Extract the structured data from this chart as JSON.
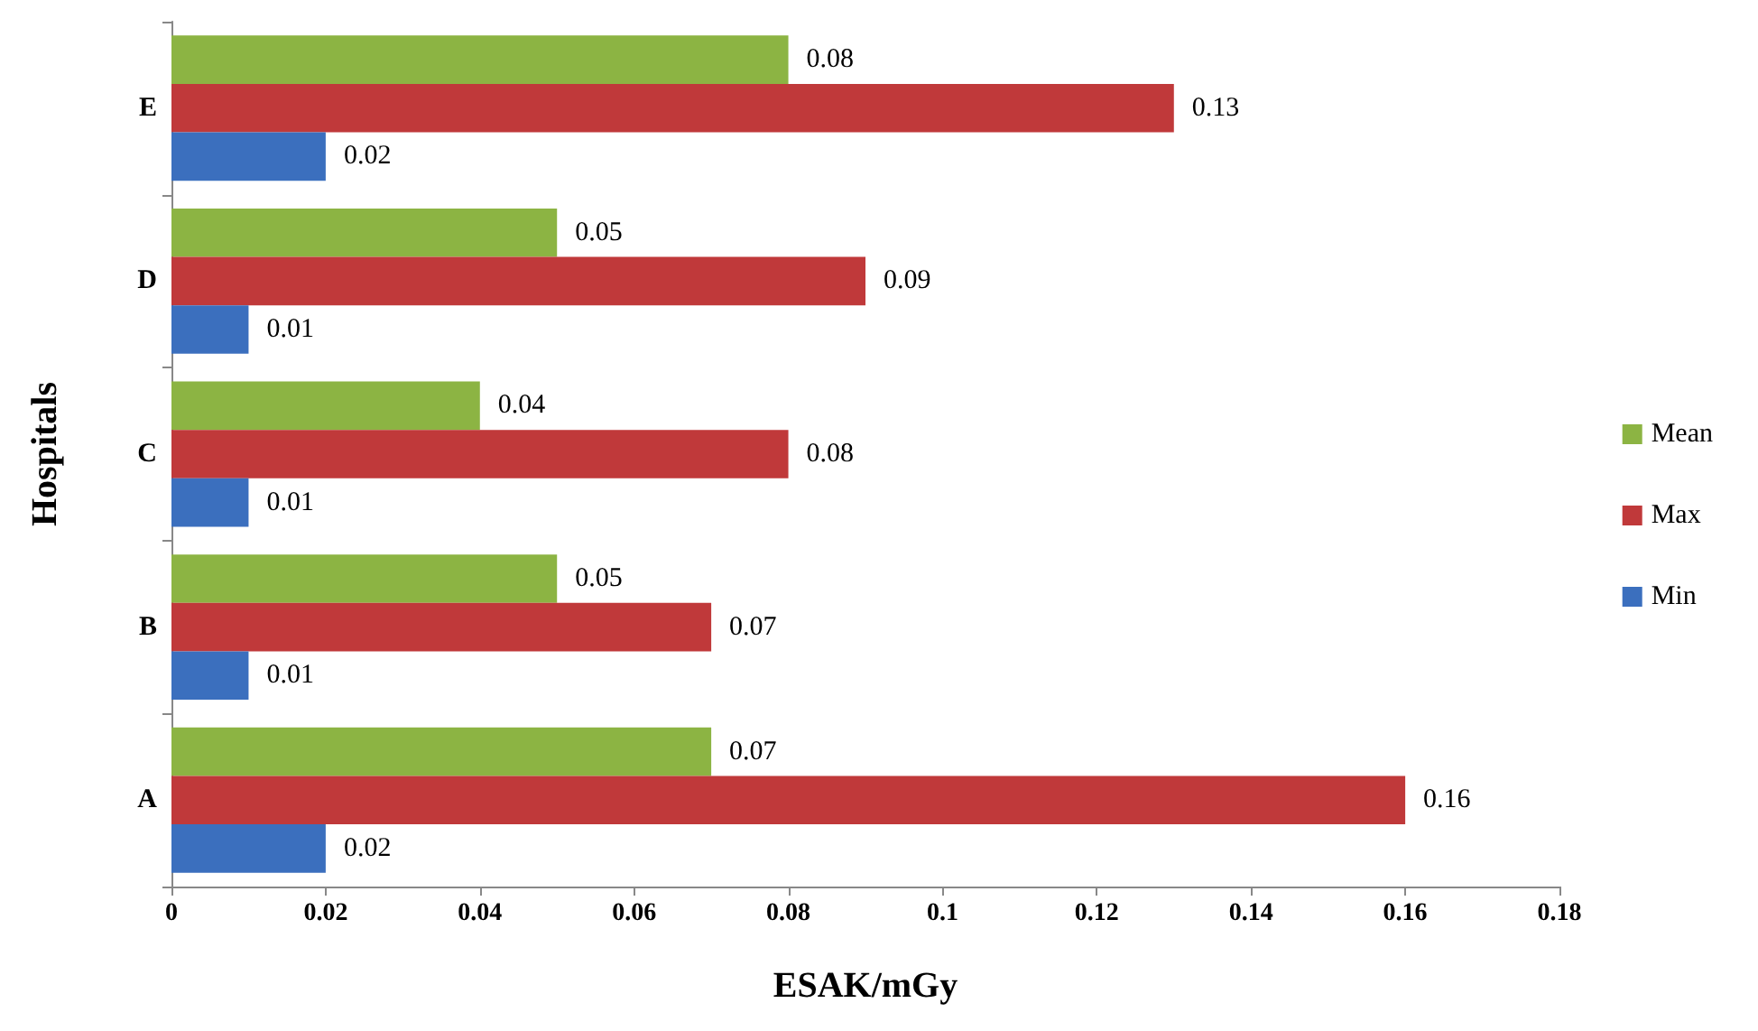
{
  "chart_data": {
    "type": "bar",
    "orientation": "horizontal",
    "xlabel": "ESAK/mGy",
    "ylabel": "Hospitals",
    "categories": [
      "E",
      "D",
      "C",
      "B",
      "A"
    ],
    "series": [
      {
        "name": "Mean",
        "color": "#8cb443",
        "values": [
          0.08,
          0.05,
          0.04,
          0.05,
          0.07
        ]
      },
      {
        "name": "Max",
        "color": "#c0393a",
        "values": [
          0.13,
          0.09,
          0.08,
          0.07,
          0.16
        ]
      },
      {
        "name": "Min",
        "color": "#3b6fbe",
        "values": [
          0.02,
          0.01,
          0.01,
          0.01,
          0.02
        ]
      }
    ],
    "xlim": [
      0,
      0.18
    ],
    "xticks": [
      0,
      0.02,
      0.04,
      0.06,
      0.08,
      0.1,
      0.12,
      0.14,
      0.16,
      0.18
    ],
    "data_labels": true,
    "grid": false,
    "legend": "right"
  }
}
